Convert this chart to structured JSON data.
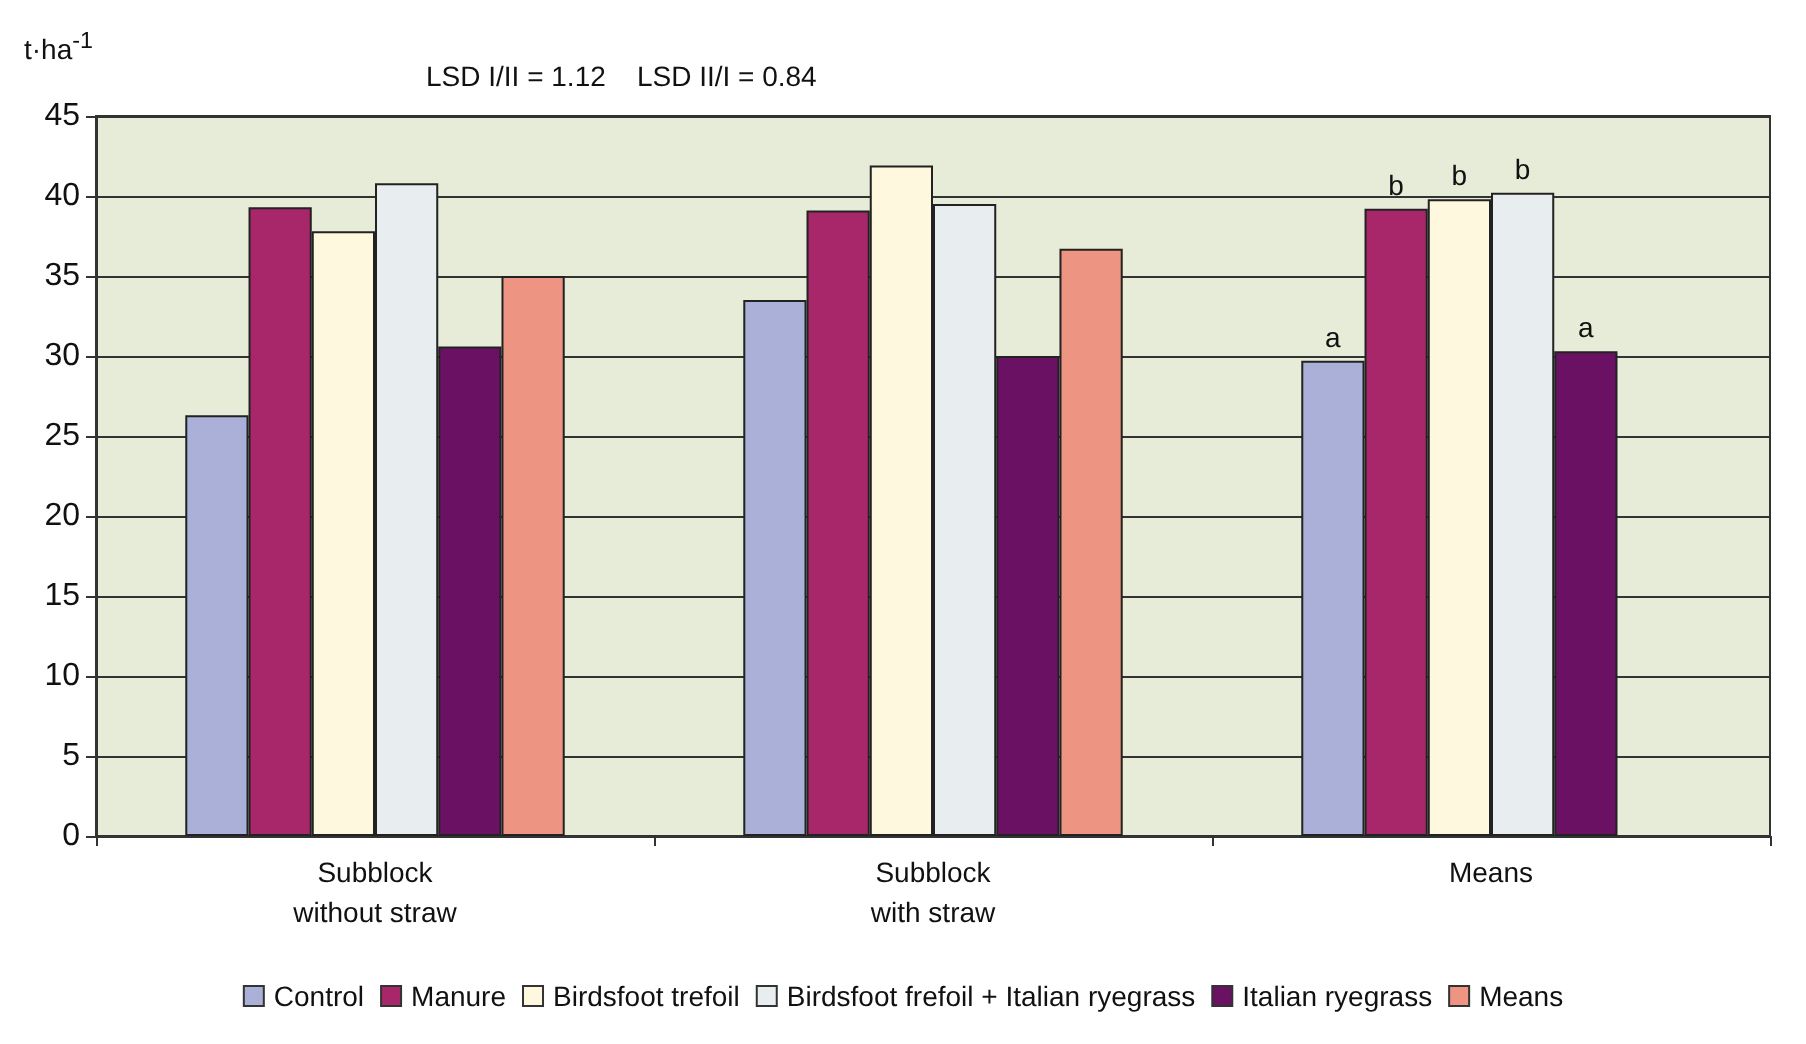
{
  "chart_data": {
    "type": "bar",
    "title": "LSD I/II = 1.12    LSD II/I = 0.84",
    "ylabel": "t·ha$^{-1}$",
    "categories": [
      "Subblock\nwithout straw",
      "Subblock\nwith straw",
      "Means"
    ],
    "series": [
      {
        "name": "Control",
        "color": "#aab0d8",
        "values": [
          26.3,
          33.5,
          29.7
        ],
        "value_labels": [
          null,
          null,
          "a"
        ]
      },
      {
        "name": "Manure",
        "color": "#a8266a",
        "values": [
          39.3,
          39.1,
          39.2
        ],
        "value_labels": [
          null,
          null,
          "b"
        ]
      },
      {
        "name": "Birdsfoot trefoil",
        "color": "#fdf8de",
        "values": [
          37.8,
          41.9,
          39.8
        ],
        "value_labels": [
          null,
          null,
          "b"
        ]
      },
      {
        "name": "Birdsfoot frefoil + Italian ryegrass",
        "color": "#e8edf0",
        "values": [
          40.8,
          39.5,
          40.2
        ],
        "value_labels": [
          null,
          null,
          "b"
        ]
      },
      {
        "name": "Italian ryegrass",
        "color": "#6a1163",
        "values": [
          30.6,
          30.0,
          30.3
        ],
        "value_labels": [
          null,
          null,
          "a"
        ]
      },
      {
        "name": "Means",
        "color": "#ee9482",
        "values": [
          35.0,
          36.7,
          null
        ]
      }
    ],
    "ylim": [
      0,
      45
    ],
    "yticks": [
      0,
      5,
      10,
      15,
      20,
      25,
      30,
      35,
      40,
      45
    ],
    "grid": "y",
    "legend": "bottom"
  }
}
